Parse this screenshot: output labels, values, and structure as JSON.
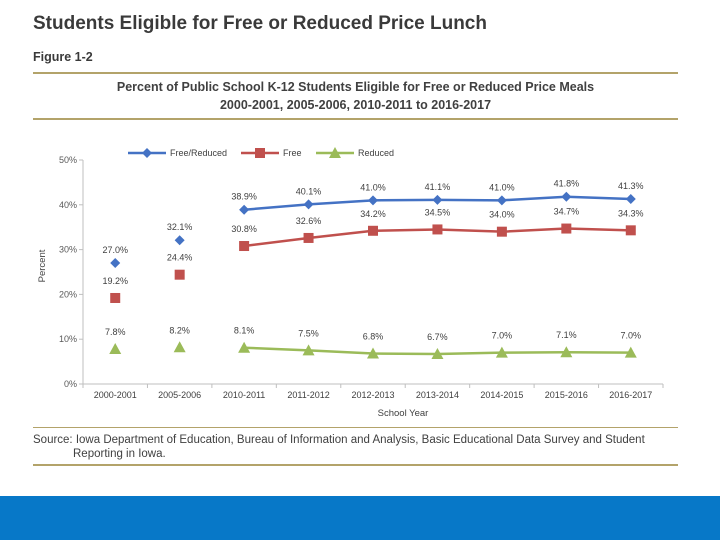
{
  "page_title": "Students Eligible for Free or Reduced Price Lunch",
  "figure_label": "Figure 1-2",
  "chart_title_line1": "Percent of Public School K-12 Students Eligible for Free or Reduced Price Meals",
  "chart_title_line2": "2000-2001, 2005-2006, 2010-2011 to 2016-2017",
  "source_note": "Source: Iowa Department of Education, Bureau of Information and Analysis, Basic Educational Data Survey and Student Reporting in Iowa.",
  "colors": {
    "free_reduced": "#4472c4",
    "free": "#c0504d",
    "reduced": "#9bbb59",
    "footer": "#0778c8",
    "rule": "#b3a36a"
  },
  "chart_data": {
    "type": "line",
    "title": "Percent of Public School K-12 Students Eligible for Free or Reduced Price Meals",
    "subtitle": "2000-2001, 2005-2006, 2010-2011 to 2016-2017",
    "xlabel": "School Year",
    "ylabel": "Percent",
    "ylim": [
      0,
      50
    ],
    "yticks": [
      "0%",
      "10%",
      "20%",
      "30%",
      "40%",
      "50%"
    ],
    "categories": [
      "2000-2001",
      "2005-2006",
      "2010-2011",
      "2011-2012",
      "2012-2013",
      "2013-2014",
      "2014-2015",
      "2015-2016",
      "2016-2017"
    ],
    "connected_from_index": 2,
    "legend_position": "top",
    "series": [
      {
        "name": "Free/Reduced",
        "marker": "diamond",
        "color": "#4472c4",
        "values": [
          27.0,
          32.1,
          38.9,
          40.1,
          41.0,
          41.1,
          41.0,
          41.8,
          41.3
        ],
        "labels": [
          "27.0%",
          "32.1%",
          "38.9%",
          "40.1%",
          "41.0%",
          "41.1%",
          "41.0%",
          "41.8%",
          "41.3%"
        ]
      },
      {
        "name": "Free",
        "marker": "square",
        "color": "#c0504d",
        "values": [
          19.2,
          24.4,
          30.8,
          32.6,
          34.2,
          34.5,
          34.0,
          34.7,
          34.3
        ],
        "labels": [
          "19.2%",
          "24.4%",
          "30.8%",
          "32.6%",
          "34.2%",
          "34.5%",
          "34.0%",
          "34.7%",
          "34.3%"
        ]
      },
      {
        "name": "Reduced",
        "marker": "triangle",
        "color": "#9bbb59",
        "values": [
          7.8,
          8.2,
          8.1,
          7.5,
          6.8,
          6.7,
          7.0,
          7.1,
          7.0
        ],
        "labels": [
          "7.8%",
          "8.2%",
          "8.1%",
          "7.5%",
          "6.8%",
          "6.7%",
          "7.0%",
          "7.1%",
          "7.0%"
        ]
      }
    ]
  }
}
